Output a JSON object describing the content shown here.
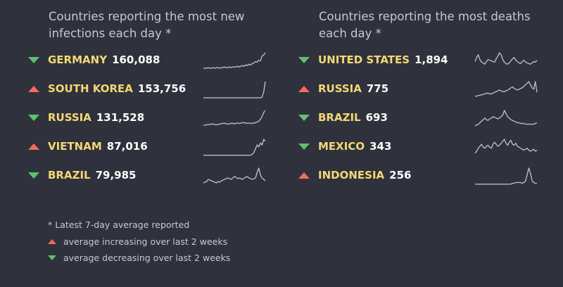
{
  "chart_data": [
    {
      "type": "table",
      "title": "Countries reporting the most new infections each day *",
      "rows": [
        {
          "country": "GERMANY",
          "value": "160,088",
          "trend": "decreasing",
          "spark": [
            2,
            2,
            2,
            3,
            2,
            2,
            3,
            2,
            3,
            3,
            2,
            3,
            3,
            4,
            3,
            3,
            4,
            3,
            4,
            4,
            4,
            5,
            4,
            5,
            6,
            5,
            7,
            6,
            8,
            7,
            9,
            10,
            12,
            11,
            14,
            13,
            20,
            22,
            25
          ]
        },
        {
          "country": "SOUTH KOREA",
          "value": "153,756",
          "trend": "increasing",
          "spark": [
            1,
            1,
            1,
            1,
            1,
            1,
            1,
            1,
            1,
            1,
            1,
            1,
            1,
            1,
            1,
            1,
            1,
            1,
            1,
            1,
            1,
            1,
            1,
            1,
            1,
            1,
            1,
            1,
            1,
            1,
            1,
            1,
            1,
            1,
            1,
            1,
            2,
            10,
            26
          ]
        },
        {
          "country": "RUSSIA",
          "value": "131,528",
          "trend": "decreasing",
          "spark": [
            3,
            3,
            4,
            4,
            4,
            5,
            5,
            4,
            4,
            4,
            5,
            5,
            6,
            6,
            5,
            5,
            5,
            6,
            6,
            5,
            6,
            6,
            6,
            6,
            7,
            7,
            6,
            6,
            6,
            6,
            6,
            6,
            7,
            8,
            9,
            12,
            16,
            22,
            25
          ]
        },
        {
          "country": "VIETNAM",
          "value": "87,016",
          "trend": "increasing",
          "spark": [
            1,
            1,
            1,
            1,
            1,
            1,
            1,
            1,
            1,
            1,
            1,
            1,
            1,
            1,
            1,
            1,
            1,
            1,
            1,
            1,
            1,
            1,
            1,
            1,
            1,
            1,
            1,
            1,
            1,
            1,
            2,
            4,
            8,
            12,
            10,
            14,
            12,
            18,
            16
          ]
        },
        {
          "country": "BRAZIL",
          "value": "79,985",
          "trend": "decreasing",
          "spark": [
            3,
            4,
            5,
            8,
            7,
            6,
            5,
            4,
            3,
            5,
            4,
            6,
            7,
            8,
            9,
            10,
            9,
            8,
            10,
            12,
            11,
            9,
            10,
            9,
            8,
            10,
            11,
            12,
            10,
            9,
            8,
            9,
            10,
            18,
            24,
            14,
            10,
            8,
            6
          ]
        }
      ]
    },
    {
      "type": "table",
      "title": "Countries reporting the most deaths each day *",
      "rows": [
        {
          "country": "UNITED STATES",
          "value": "1,894",
          "trend": "decreasing",
          "spark": [
            12,
            18,
            22,
            15,
            11,
            10,
            8,
            12,
            15,
            14,
            13,
            12,
            11,
            16,
            20,
            25,
            22,
            15,
            11,
            9,
            8,
            10,
            13,
            16,
            18,
            14,
            12,
            10,
            9,
            12,
            14,
            11,
            10,
            9,
            8,
            10,
            12,
            11,
            14
          ]
        },
        {
          "country": "RUSSIA",
          "value": "775",
          "trend": "increasing",
          "spark": [
            3,
            3,
            4,
            4,
            5,
            5,
            6,
            7,
            7,
            6,
            6,
            7,
            8,
            9,
            10,
            11,
            10,
            9,
            9,
            10,
            11,
            12,
            14,
            15,
            13,
            12,
            11,
            12,
            13,
            14,
            16,
            18,
            20,
            22,
            18,
            14,
            12,
            22,
            8
          ]
        },
        {
          "country": "BRAZIL",
          "value": "693",
          "trend": "decreasing",
          "spark": [
            2,
            3,
            4,
            6,
            8,
            10,
            12,
            10,
            9,
            11,
            12,
            14,
            13,
            12,
            11,
            12,
            14,
            16,
            22,
            18,
            14,
            12,
            10,
            9,
            8,
            7,
            6,
            6,
            5,
            5,
            5,
            4,
            4,
            4,
            4,
            4,
            4,
            5,
            6
          ]
        },
        {
          "country": "MEXICO",
          "value": "343",
          "trend": "decreasing",
          "spark": [
            3,
            5,
            8,
            10,
            12,
            9,
            8,
            10,
            11,
            9,
            8,
            12,
            14,
            12,
            10,
            11,
            13,
            15,
            17,
            13,
            11,
            14,
            16,
            12,
            11,
            13,
            10,
            9,
            8,
            7,
            6,
            7,
            8,
            6,
            5,
            6,
            7,
            5,
            6
          ]
        },
        {
          "country": "INDONESIA",
          "value": "256",
          "trend": "increasing",
          "spark": [
            1,
            1,
            1,
            1,
            1,
            1,
            1,
            1,
            1,
            1,
            1,
            1,
            1,
            1,
            1,
            1,
            1,
            1,
            1,
            1,
            1,
            1,
            1,
            2,
            2,
            3,
            3,
            3,
            3,
            2,
            3,
            5,
            12,
            20,
            14,
            5,
            3,
            2,
            2
          ]
        }
      ]
    }
  ],
  "footnote": "* Latest 7-day average reported",
  "legend": {
    "increasing": "average increasing over last 2 weeks",
    "decreasing": "average decreasing over last 2 weeks"
  },
  "colors": {
    "background": "#2f323c",
    "increasing": "#f26b5b",
    "decreasing": "#5ec26a",
    "country": "#f5d773",
    "sparkline": "#b6bac4"
  }
}
